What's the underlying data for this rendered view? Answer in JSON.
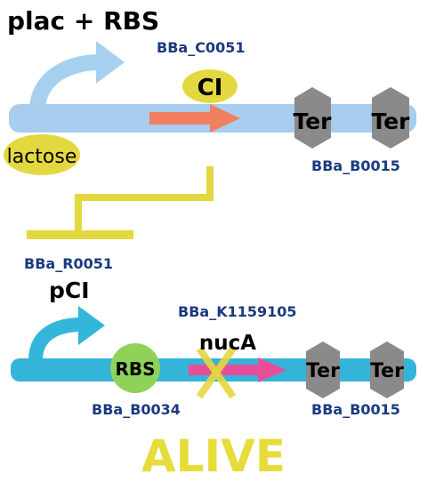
{
  "top_circuit": {
    "promoter_label": "plac + RBS",
    "repressor_id": "BBa_C0051",
    "repressor_label": "CI",
    "inducer_label": "lactose",
    "terminator_1": "Ter",
    "terminator_2": "Ter",
    "terminator_id": "BBa_B0015"
  },
  "bottom_circuit": {
    "promoter_id": "BBa_R0051",
    "promoter_label": "pCI",
    "gene_id": "BBa_K1159105",
    "gene_label": "nucA",
    "rbs_label": "RBS",
    "rbs_id": "BBa_B0034",
    "terminator_1": "Ter",
    "terminator_2": "Ter",
    "terminator_id": "BBa_B0015"
  },
  "status": "ALIVE",
  "colors": {
    "top_bar": "#a8cdee",
    "top_promoter_arrow": "#a6d0f0",
    "bottom_bar": "#34b4d8",
    "bottom_promoter_arrow": "#33b6d9",
    "yellow": "#e4d840",
    "top_gene_arrow": "#f08060",
    "bottom_gene_arrow": "#e84d9a",
    "terminator": "#8a8a8a",
    "rbs": "#8fd25a",
    "id_text": "#1a3a80",
    "status_text": "#e6dc3a"
  }
}
